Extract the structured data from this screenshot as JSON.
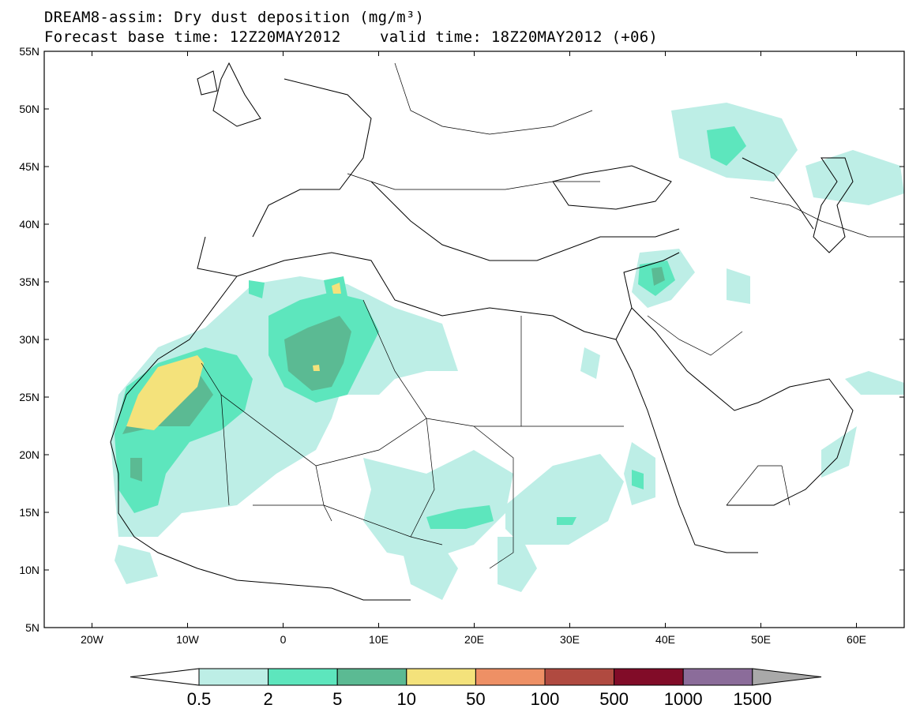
{
  "header": {
    "title": "DREAM8-assim: Dry dust deposition (mg/m³)",
    "base_time": "Forecast base time: 12Z20MAY2012",
    "valid_time": "valid time: 18Z20MAY2012 (+06)"
  },
  "map": {
    "lon_range": [
      -25,
      65
    ],
    "lat_range": [
      5,
      55
    ],
    "lat_labels": [
      "55N",
      "50N",
      "45N",
      "40N",
      "35N",
      "30N",
      "25N",
      "20N",
      "15N",
      "10N",
      "5N"
    ],
    "lon_labels": [
      "20W",
      "10W",
      "0",
      "10E",
      "20E",
      "30E",
      "40E",
      "50E",
      "60E"
    ]
  },
  "legend": {
    "labels": [
      "0.5",
      "2",
      "5",
      "10",
      "50",
      "100",
      "500",
      "1000",
      "1500"
    ],
    "colors": [
      "#bdeee6",
      "#5de6bd",
      "#5bba93",
      "#f4e27b",
      "#ee9065",
      "#b04a40",
      "#810c28",
      "#8b6c9a"
    ],
    "under_color": "#ffffff",
    "over_color": "#a9a9a9"
  }
}
